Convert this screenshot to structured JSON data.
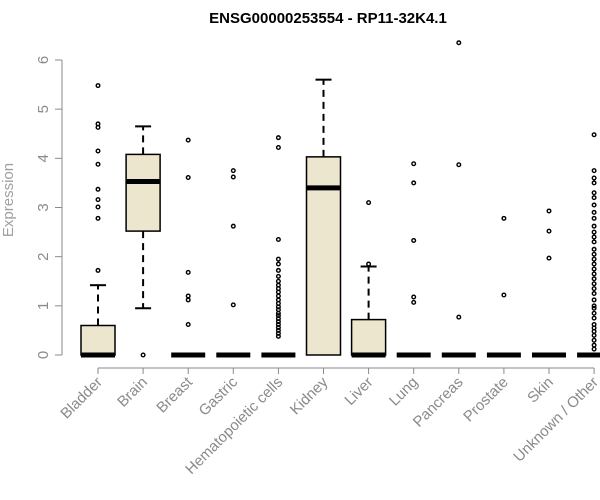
{
  "chart_data": {
    "type": "box",
    "title": "ENSG00000253554 - RP11-32K4.1",
    "xlabel": "",
    "ylabel": "Expression",
    "ylim": [
      0,
      6.2
    ],
    "yticks": [
      0,
      1,
      2,
      3,
      4,
      5,
      6
    ],
    "box_fill": "#ede6cf",
    "box_stroke": "#000000",
    "outlier_stroke": "#000000",
    "axis_color": "#8a8a8a",
    "categories": [
      "Bladder",
      "Brain",
      "Breast",
      "Gastric",
      "Hematopoietic cells",
      "Kidney",
      "Liver",
      "Lung",
      "Pancreas",
      "Prostate",
      "Skin",
      "Unknown / Other"
    ],
    "boxes": [
      {
        "q1": 0,
        "median": 0,
        "q3": 0.6,
        "whisker_low": 0,
        "whisker_high": 1.42,
        "outliers": [
          5.48,
          4.7,
          4.63,
          4.15,
          3.88,
          3.37,
          3.16,
          3.01,
          2.78,
          1.72
        ]
      },
      {
        "q1": 2.52,
        "median": 3.53,
        "q3": 4.08,
        "whisker_low": 0.95,
        "whisker_high": 4.65,
        "outliers": [
          0
        ]
      },
      {
        "q1": 0,
        "median": 0,
        "q3": 0,
        "whisker_low": 0,
        "whisker_high": 0,
        "outliers": [
          4.37,
          3.61,
          1.68,
          1.2,
          1.12,
          0.62
        ]
      },
      {
        "q1": 0,
        "median": 0,
        "q3": 0,
        "whisker_low": 0,
        "whisker_high": 0,
        "outliers": [
          3.75,
          3.62,
          2.62,
          1.02
        ]
      },
      {
        "q1": 0,
        "median": 0,
        "q3": 0,
        "whisker_low": 0,
        "whisker_high": 0,
        "outliers": [
          4.42,
          4.22,
          2.35,
          1.95,
          1.85,
          1.72,
          1.6,
          1.5,
          1.42,
          1.35,
          1.28,
          1.2,
          1.12,
          1.05,
          0.98,
          0.92,
          0.85,
          0.8,
          0.74,
          0.68,
          0.62,
          0.56,
          0.5,
          0.44,
          0.38
        ]
      },
      {
        "q1": 0,
        "median": 3.4,
        "q3": 4.03,
        "whisker_low": 0,
        "whisker_high": 5.6,
        "outliers": []
      },
      {
        "q1": 0,
        "median": 0,
        "q3": 0.72,
        "whisker_low": 0,
        "whisker_high": 1.8,
        "outliers": [
          3.1,
          1.85
        ]
      },
      {
        "q1": 0,
        "median": 0,
        "q3": 0,
        "whisker_low": 0,
        "whisker_high": 0,
        "outliers": [
          3.89,
          3.5,
          2.33,
          1.18,
          1.07
        ]
      },
      {
        "q1": 0,
        "median": 0,
        "q3": 0,
        "whisker_low": 0,
        "whisker_high": 0,
        "outliers": [
          6.35,
          3.87,
          0.77
        ]
      },
      {
        "q1": 0,
        "median": 0,
        "q3": 0,
        "whisker_low": 0,
        "whisker_high": 0,
        "outliers": [
          2.78,
          1.22
        ]
      },
      {
        "q1": 0,
        "median": 0,
        "q3": 0,
        "whisker_low": 0,
        "whisker_high": 0,
        "outliers": [
          2.93,
          2.52,
          1.97
        ]
      },
      {
        "q1": 0,
        "median": 0,
        "q3": 0,
        "whisker_low": 0,
        "whisker_high": 0,
        "outliers": [
          4.48,
          3.75,
          3.6,
          3.5,
          3.3,
          3.2,
          3.05,
          2.9,
          2.78,
          2.62,
          2.5,
          2.4,
          2.3,
          2.15,
          2.05,
          1.95,
          1.85,
          1.75,
          1.65,
          1.55,
          1.45,
          1.35,
          1.25,
          1.12,
          1.0,
          0.95,
          0.85,
          0.75,
          0.62,
          0.55,
          0.48,
          0.4,
          0.3,
          0.2,
          0.12
        ]
      }
    ]
  }
}
